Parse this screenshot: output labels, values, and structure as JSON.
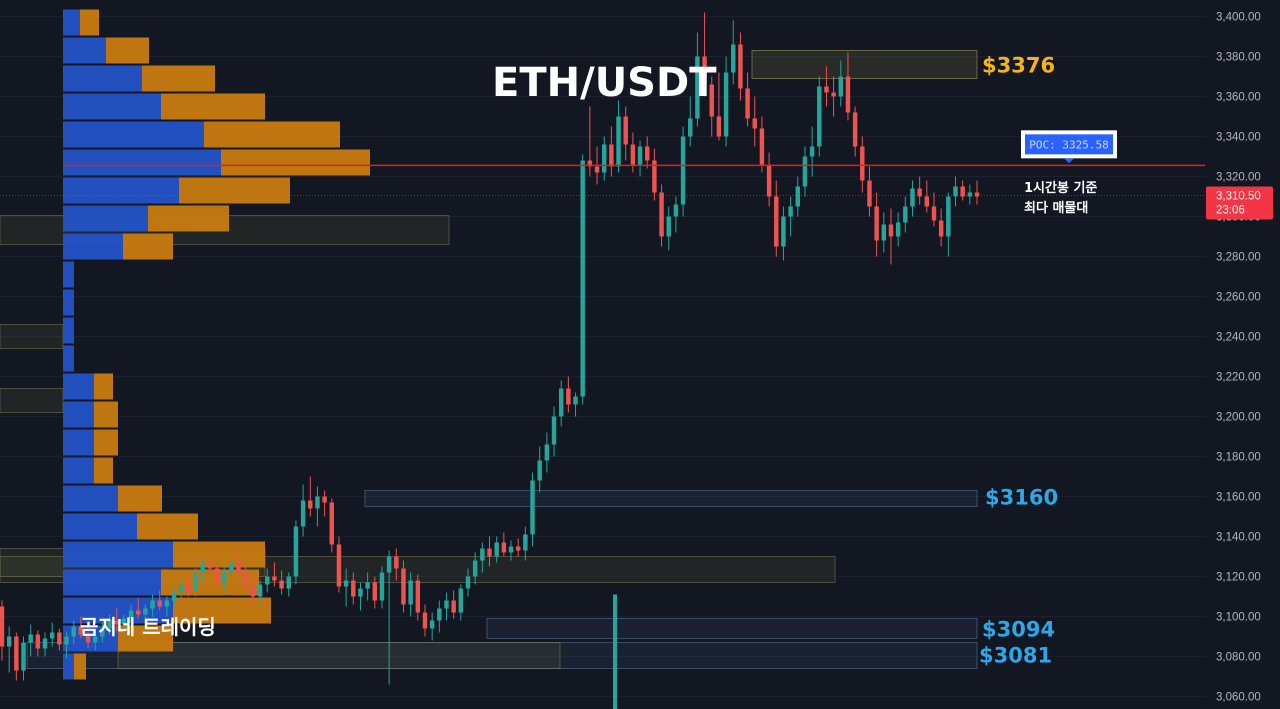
{
  "chart_data": {
    "type": "candlestick",
    "title": "ETH/USDT",
    "watermark": "곰지네 트레이딩",
    "timeframe_note": [
      "1시간봉 기준",
      "최다 매물대"
    ],
    "ylim": [
      3055,
      3410
    ],
    "yticks": [
      3060,
      3080,
      3100,
      3120,
      3140,
      3160,
      3180,
      3200,
      3220,
      3240,
      3260,
      3280,
      3300,
      3320,
      3340,
      3360,
      3380,
      3400
    ],
    "ytick_labels": [
      "3,060.00",
      "3,080.00",
      "3,100.00",
      "3,120.00",
      "3,140.00",
      "3,160.00",
      "3,180.00",
      "3,200.00",
      "3,220.00",
      "3,240.00",
      "3,260.00",
      "3,280.00",
      "3,300.00",
      "3,320.00",
      "3,340.00",
      "3,360.00",
      "3,380.00",
      "3,400.00"
    ],
    "last_price": {
      "value": 3310.5,
      "label": "3,310.50",
      "countdown": "23:06"
    },
    "poc": {
      "value": 3325.58,
      "label": "POC: 3325.58"
    },
    "levels": [
      {
        "value": 3376,
        "label": "$3376",
        "color": "#f5b516",
        "zone": [
          3369,
          3383
        ]
      },
      {
        "value": 3160,
        "label": "$3160",
        "color": "#2fa6e6",
        "zone": [
          3155,
          3163
        ]
      },
      {
        "value": 3094,
        "label": "$3094",
        "color": "#2fa6e6",
        "zone": [
          3089,
          3099
        ]
      },
      {
        "value": 3081,
        "label": "$3081",
        "color": "#2fa6e6",
        "zone": [
          3074,
          3087
        ]
      }
    ],
    "volume_profile": {
      "bin_size": 14,
      "bins": [
        {
          "price": 3397,
          "buy": 17,
          "sell": 19
        },
        {
          "price": 3383,
          "buy": 43,
          "sell": 43
        },
        {
          "price": 3369,
          "buy": 79,
          "sell": 73
        },
        {
          "price": 3355,
          "buy": 98,
          "sell": 104
        },
        {
          "price": 3341,
          "buy": 141,
          "sell": 136
        },
        {
          "price": 3327,
          "buy": 158,
          "sell": 149
        },
        {
          "price": 3313,
          "buy": 116,
          "sell": 111
        },
        {
          "price": 3299,
          "buy": 85,
          "sell": 81
        },
        {
          "price": 3285,
          "buy": 60,
          "sell": 50
        },
        {
          "price": 3271,
          "buy": 11,
          "sell": 0
        },
        {
          "price": 3257,
          "buy": 11,
          "sell": 0
        },
        {
          "price": 3243,
          "buy": 11,
          "sell": 0
        },
        {
          "price": 3229,
          "buy": 11,
          "sell": 0
        },
        {
          "price": 3215,
          "buy": 31,
          "sell": 19
        },
        {
          "price": 3201,
          "buy": 31,
          "sell": 24
        },
        {
          "price": 3187,
          "buy": 31,
          "sell": 24
        },
        {
          "price": 3173,
          "buy": 31,
          "sell": 19
        },
        {
          "price": 3159,
          "buy": 55,
          "sell": 44
        },
        {
          "price": 3145,
          "buy": 74,
          "sell": 61
        },
        {
          "price": 3131,
          "buy": 110,
          "sell": 92
        },
        {
          "price": 3117,
          "buy": 98,
          "sell": 98
        },
        {
          "price": 3103,
          "buy": 110,
          "sell": 98
        },
        {
          "price": 3089,
          "buy": 55,
          "sell": 55
        },
        {
          "price": 3075,
          "buy": 11,
          "sell": 12
        }
      ]
    },
    "candles": [
      [
        3105,
        3108,
        3078,
        3085
      ],
      [
        3085,
        3095,
        3072,
        3090
      ],
      [
        3090,
        3092,
        3068,
        3073
      ],
      [
        3073,
        3090,
        3068,
        3087
      ],
      [
        3087,
        3096,
        3080,
        3091
      ],
      [
        3091,
        3093,
        3080,
        3084
      ],
      [
        3084,
        3092,
        3080,
        3089
      ],
      [
        3089,
        3097,
        3085,
        3092
      ],
      [
        3092,
        3094,
        3083,
        3086
      ],
      [
        3086,
        3092,
        3079,
        3090
      ],
      [
        3090,
        3098,
        3086,
        3095
      ],
      [
        3095,
        3100,
        3089,
        3091
      ],
      [
        3091,
        3095,
        3084,
        3087
      ],
      [
        3087,
        3093,
        3083,
        3090
      ],
      [
        3090,
        3097,
        3087,
        3094
      ],
      [
        3094,
        3101,
        3091,
        3098
      ],
      [
        3098,
        3104,
        3093,
        3096
      ],
      [
        3096,
        3101,
        3090,
        3099
      ],
      [
        3099,
        3106,
        3095,
        3103
      ],
      [
        3103,
        3109,
        3099,
        3101
      ],
      [
        3101,
        3106,
        3095,
        3104
      ],
      [
        3104,
        3111,
        3100,
        3108
      ],
      [
        3108,
        3113,
        3103,
        3105
      ],
      [
        3105,
        3110,
        3100,
        3108
      ],
      [
        3108,
        3115,
        3105,
        3112
      ],
      [
        3112,
        3119,
        3108,
        3116
      ],
      [
        3116,
        3121,
        3110,
        3113
      ],
      [
        3113,
        3124,
        3110,
        3122
      ],
      [
        3122,
        3129,
        3117,
        3126
      ],
      [
        3126,
        3131,
        3120,
        3124
      ],
      [
        3124,
        3128,
        3114,
        3117
      ],
      [
        3117,
        3125,
        3112,
        3122
      ],
      [
        3122,
        3130,
        3118,
        3127
      ],
      [
        3127,
        3131,
        3120,
        3122
      ],
      [
        3122,
        3127,
        3112,
        3115
      ],
      [
        3115,
        3121,
        3105,
        3110
      ],
      [
        3110,
        3118,
        3106,
        3116
      ],
      [
        3116,
        3124,
        3112,
        3120
      ],
      [
        3120,
        3127,
        3115,
        3118
      ],
      [
        3118,
        3123,
        3111,
        3114
      ],
      [
        3114,
        3122,
        3110,
        3120
      ],
      [
        3120,
        3148,
        3116,
        3145
      ],
      [
        3145,
        3166,
        3140,
        3158
      ],
      [
        3158,
        3170,
        3150,
        3154
      ],
      [
        3154,
        3165,
        3145,
        3160
      ],
      [
        3160,
        3163,
        3150,
        3157
      ],
      [
        3157,
        3159,
        3132,
        3136
      ],
      [
        3136,
        3140,
        3112,
        3115
      ],
      [
        3115,
        3124,
        3105,
        3118
      ],
      [
        3118,
        3122,
        3106,
        3110
      ],
      [
        3110,
        3117,
        3103,
        3114
      ],
      [
        3114,
        3122,
        3108,
        3117
      ],
      [
        3117,
        3120,
        3104,
        3108
      ],
      [
        3108,
        3125,
        3104,
        3122
      ],
      [
        3122,
        3133,
        3066,
        3130
      ],
      [
        3130,
        3134,
        3118,
        3124
      ],
      [
        3124,
        3128,
        3102,
        3106
      ],
      [
        3106,
        3122,
        3100,
        3118
      ],
      [
        3118,
        3121,
        3098,
        3102
      ],
      [
        3102,
        3106,
        3090,
        3094
      ],
      [
        3094,
        3102,
        3088,
        3098
      ],
      [
        3098,
        3108,
        3092,
        3104
      ],
      [
        3104,
        3112,
        3098,
        3108
      ],
      [
        3108,
        3113,
        3099,
        3102
      ],
      [
        3102,
        3116,
        3098,
        3114
      ],
      [
        3114,
        3124,
        3110,
        3120
      ],
      [
        3120,
        3132,
        3116,
        3128
      ],
      [
        3128,
        3137,
        3122,
        3134
      ],
      [
        3134,
        3140,
        3125,
        3130
      ],
      [
        3130,
        3140,
        3127,
        3137
      ],
      [
        3137,
        3142,
        3130,
        3132
      ],
      [
        3132,
        3138,
        3128,
        3135
      ],
      [
        3135,
        3139,
        3130,
        3133
      ],
      [
        3133,
        3145,
        3128,
        3141
      ],
      [
        3141,
        3172,
        3135,
        3168
      ],
      [
        3168,
        3185,
        3162,
        3178
      ],
      [
        3178,
        3192,
        3172,
        3186
      ],
      [
        3186,
        3205,
        3180,
        3200
      ],
      [
        3200,
        3218,
        3195,
        3214
      ],
      [
        3214,
        3220,
        3202,
        3206
      ],
      [
        3206,
        3212,
        3200,
        3210
      ],
      [
        3210,
        3331,
        3206,
        3328
      ],
      [
        3328,
        3355,
        3320,
        3325
      ],
      [
        3325,
        3335,
        3316,
        3322
      ],
      [
        3322,
        3340,
        3318,
        3336
      ],
      [
        3336,
        3345,
        3320,
        3325
      ],
      [
        3325,
        3358,
        3322,
        3350
      ],
      [
        3350,
        3355,
        3328,
        3336
      ],
      [
        3336,
        3342,
        3322,
        3326
      ],
      [
        3326,
        3338,
        3320,
        3335
      ],
      [
        3335,
        3340,
        3324,
        3328
      ],
      [
        3328,
        3334,
        3308,
        3312
      ],
      [
        3312,
        3316,
        3285,
        3290
      ],
      [
        3290,
        3305,
        3283,
        3300
      ],
      [
        3300,
        3310,
        3292,
        3306
      ],
      [
        3306,
        3345,
        3300,
        3340
      ],
      [
        3340,
        3360,
        3335,
        3349
      ],
      [
        3349,
        3392,
        3345,
        3380
      ],
      [
        3380,
        3402,
        3360,
        3366
      ],
      [
        3366,
        3370,
        3340,
        3350
      ],
      [
        3350,
        3372,
        3338,
        3340
      ],
      [
        3340,
        3380,
        3335,
        3372
      ],
      [
        3372,
        3398,
        3366,
        3386
      ],
      [
        3386,
        3392,
        3358,
        3364
      ],
      [
        3364,
        3372,
        3345,
        3349
      ],
      [
        3349,
        3360,
        3335,
        3344
      ],
      [
        3344,
        3350,
        3322,
        3326
      ],
      [
        3326,
        3332,
        3305,
        3310
      ],
      [
        3310,
        3318,
        3280,
        3285
      ],
      [
        3285,
        3305,
        3278,
        3300
      ],
      [
        3300,
        3310,
        3290,
        3305
      ],
      [
        3305,
        3320,
        3300,
        3315
      ],
      [
        3315,
        3335,
        3310,
        3330
      ],
      [
        3330,
        3345,
        3320,
        3335
      ],
      [
        3335,
        3370,
        3330,
        3365
      ],
      [
        3365,
        3375,
        3355,
        3362
      ],
      [
        3362,
        3370,
        3350,
        3360
      ],
      [
        3360,
        3378,
        3355,
        3370
      ],
      [
        3370,
        3382,
        3348,
        3352
      ],
      [
        3352,
        3355,
        3330,
        3335
      ],
      [
        3335,
        3340,
        3312,
        3318
      ],
      [
        3318,
        3325,
        3300,
        3305
      ],
      [
        3305,
        3312,
        3280,
        3288
      ],
      [
        3288,
        3302,
        3282,
        3296
      ],
      [
        3296,
        3304,
        3276,
        3290
      ],
      [
        3290,
        3302,
        3285,
        3297
      ],
      [
        3297,
        3310,
        3292,
        3305
      ],
      [
        3305,
        3318,
        3300,
        3314
      ],
      [
        3314,
        3320,
        3306,
        3310
      ],
      [
        3310,
        3318,
        3302,
        3305
      ],
      [
        3305,
        3312,
        3295,
        3298
      ],
      [
        3298,
        3304,
        3285,
        3290
      ],
      [
        3290,
        3312,
        3280,
        3310
      ],
      [
        3310,
        3320,
        3305,
        3315
      ],
      [
        3315,
        3318,
        3308,
        3310
      ],
      [
        3310,
        3316,
        3306,
        3312
      ],
      [
        3312,
        3318,
        3306,
        3310
      ]
    ],
    "up_color": "#26a69a",
    "down_color": "#ef5350",
    "poc_line_color": "#e0201c"
  }
}
